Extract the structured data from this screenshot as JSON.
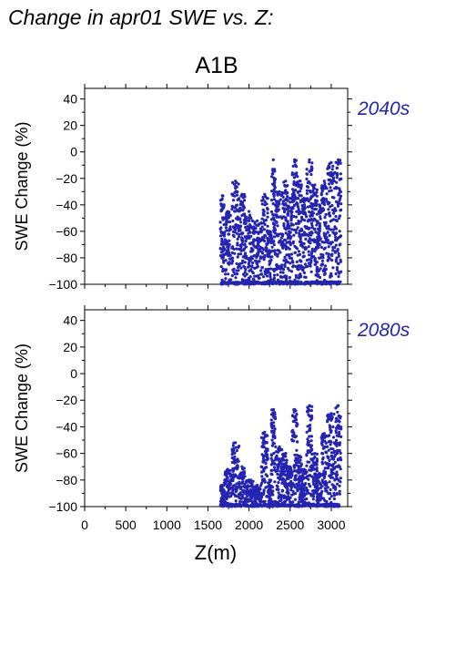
{
  "figure": {
    "title": "Change in apr01 SWE vs. Z:",
    "scenario": "A1B",
    "point_color": "#2424b4"
  },
  "chart_data": [
    {
      "type": "scatter",
      "panel_label": "2040s",
      "xlabel": "Z(m)",
      "ylabel": "SWE Change (%)",
      "xlim": [
        0,
        3200
      ],
      "ylim": [
        -100,
        48
      ],
      "xticks": [
        0,
        500,
        1000,
        1500,
        2000,
        2500,
        3000
      ],
      "yticks": [
        -100,
        -80,
        -60,
        -40,
        -20,
        0,
        20,
        40
      ],
      "ytick_labels": [
        "−100",
        "−80",
        "−60",
        "−40",
        "−20",
        "0",
        "20",
        "40"
      ],
      "grid": false,
      "clusters": [
        {
          "x": [
            1650,
            1700
          ],
          "y": [
            -100,
            -33
          ]
        },
        {
          "x": [
            1700,
            1780
          ],
          "y": [
            -100,
            -45
          ]
        },
        {
          "x": [
            1790,
            1880
          ],
          "y": [
            -100,
            -22
          ]
        },
        {
          "x": [
            1880,
            1950
          ],
          "y": [
            -100,
            -32
          ]
        },
        {
          "x": [
            1950,
            2050
          ],
          "y": [
            -100,
            -45
          ]
        },
        {
          "x": [
            2050,
            2150
          ],
          "y": [
            -100,
            -52
          ]
        },
        {
          "x": [
            2150,
            2230
          ],
          "y": [
            -100,
            -32
          ]
        },
        {
          "x": [
            2230,
            2270
          ],
          "y": [
            -100,
            -60
          ]
        },
        {
          "x": [
            2270,
            2320
          ],
          "y": [
            -100,
            -6
          ]
        },
        {
          "x": [
            2320,
            2420
          ],
          "y": [
            -100,
            -30
          ]
        },
        {
          "x": [
            2420,
            2470
          ],
          "y": [
            -100,
            -22
          ]
        },
        {
          "x": [
            2470,
            2520
          ],
          "y": [
            -100,
            -35
          ]
        },
        {
          "x": [
            2520,
            2590
          ],
          "y": [
            -100,
            -6
          ]
        },
        {
          "x": [
            2590,
            2640
          ],
          "y": [
            -100,
            -22
          ]
        },
        {
          "x": [
            2640,
            2700
          ],
          "y": [
            -100,
            -35
          ]
        },
        {
          "x": [
            2700,
            2770
          ],
          "y": [
            -100,
            -6
          ]
        },
        {
          "x": [
            2770,
            2830
          ],
          "y": [
            -100,
            -25
          ]
        },
        {
          "x": [
            2830,
            2880
          ],
          "y": [
            -100,
            -40
          ]
        },
        {
          "x": [
            2880,
            2950
          ],
          "y": [
            -100,
            -22
          ]
        },
        {
          "x": [
            2950,
            3050
          ],
          "y": [
            -100,
            -8
          ]
        },
        {
          "x": [
            3050,
            3120
          ],
          "y": [
            -100,
            -6
          ]
        }
      ]
    },
    {
      "type": "scatter",
      "panel_label": "2080s",
      "xlabel": "Z(m)",
      "ylabel": "SWE Change (%)",
      "xlim": [
        0,
        3200
      ],
      "ylim": [
        -100,
        48
      ],
      "xticks": [
        0,
        500,
        1000,
        1500,
        2000,
        2500,
        3000
      ],
      "yticks": [
        -100,
        -80,
        -60,
        -40,
        -20,
        0,
        20,
        40
      ],
      "ytick_labels": [
        "−100",
        "−80",
        "−60",
        "−40",
        "−20",
        "0",
        "20",
        "40"
      ],
      "xtick_labels": [
        "0",
        "500",
        "1000",
        "1500",
        "2000",
        "2500",
        "3000"
      ],
      "grid": false,
      "clusters": [
        {
          "x": [
            1650,
            1700
          ],
          "y": [
            -100,
            -84
          ]
        },
        {
          "x": [
            1700,
            1780
          ],
          "y": [
            -100,
            -72
          ]
        },
        {
          "x": [
            1790,
            1880
          ],
          "y": [
            -100,
            -52
          ]
        },
        {
          "x": [
            1880,
            1950
          ],
          "y": [
            -100,
            -70
          ]
        },
        {
          "x": [
            1950,
            2050
          ],
          "y": [
            -100,
            -80
          ]
        },
        {
          "x": [
            2050,
            2150
          ],
          "y": [
            -100,
            -84
          ]
        },
        {
          "x": [
            2150,
            2230
          ],
          "y": [
            -100,
            -44
          ]
        },
        {
          "x": [
            2230,
            2270
          ],
          "y": [
            -100,
            -80
          ]
        },
        {
          "x": [
            2270,
            2320
          ],
          "y": [
            -100,
            -27
          ]
        },
        {
          "x": [
            2320,
            2420
          ],
          "y": [
            -100,
            -55
          ]
        },
        {
          "x": [
            2420,
            2470
          ],
          "y": [
            -100,
            -60
          ]
        },
        {
          "x": [
            2470,
            2520
          ],
          "y": [
            -100,
            -70
          ]
        },
        {
          "x": [
            2520,
            2590
          ],
          "y": [
            -100,
            -27
          ]
        },
        {
          "x": [
            2590,
            2640
          ],
          "y": [
            -100,
            -62
          ]
        },
        {
          "x": [
            2640,
            2700
          ],
          "y": [
            -100,
            -72
          ]
        },
        {
          "x": [
            2700,
            2770
          ],
          "y": [
            -100,
            -24
          ]
        },
        {
          "x": [
            2770,
            2830
          ],
          "y": [
            -100,
            -60
          ]
        },
        {
          "x": [
            2830,
            2880
          ],
          "y": [
            -100,
            -75
          ]
        },
        {
          "x": [
            2880,
            2950
          ],
          "y": [
            -100,
            -45
          ]
        },
        {
          "x": [
            2950,
            3050
          ],
          "y": [
            -100,
            -30
          ]
        },
        {
          "x": [
            3050,
            3120
          ],
          "y": [
            -100,
            -24
          ]
        }
      ]
    }
  ]
}
